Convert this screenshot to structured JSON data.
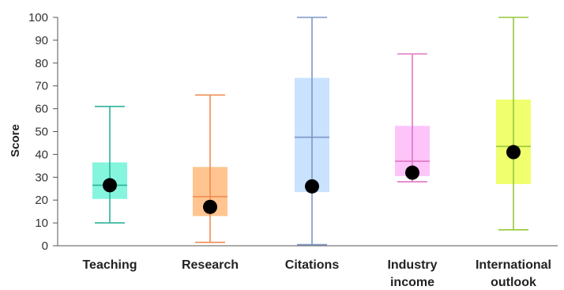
{
  "chart_data": {
    "type": "box",
    "title": "",
    "xlabel": "",
    "ylabel": "Score",
    "ylim": [
      0,
      100
    ],
    "yticks": [
      0,
      10,
      20,
      30,
      40,
      50,
      60,
      70,
      80,
      90,
      100
    ],
    "grid": false,
    "categories": [
      [
        "Teaching"
      ],
      [
        "Research"
      ],
      [
        "Citations"
      ],
      [
        "Industry",
        "income"
      ],
      [
        "International",
        "outlook"
      ]
    ],
    "boxes": [
      {
        "min": 10,
        "q1": 20.5,
        "median": 26.5,
        "q3": 36.5,
        "max": 61,
        "point": 26.5,
        "color": "#2bb39a",
        "fill": "#86f5de"
      },
      {
        "min": 1.5,
        "q1": 13,
        "median": 21.5,
        "q3": 34.5,
        "max": 66,
        "point": 17,
        "color": "#f08a50",
        "fill": "#ffc48f"
      },
      {
        "min": 0.5,
        "q1": 23.5,
        "median": 47.5,
        "q3": 73.5,
        "max": 100,
        "point": 26,
        "color": "#7c98c4",
        "fill": "#c9e2ff"
      },
      {
        "min": 28,
        "q1": 30.5,
        "median": 37,
        "q3": 52.5,
        "max": 84,
        "point": 32,
        "color": "#e077c3",
        "fill": "#fdc4fa"
      },
      {
        "min": 7,
        "q1": 27,
        "median": 43.5,
        "q3": 64,
        "max": 100,
        "point": 41,
        "color": "#98c83c",
        "fill": "#f0ff6d"
      }
    ]
  }
}
